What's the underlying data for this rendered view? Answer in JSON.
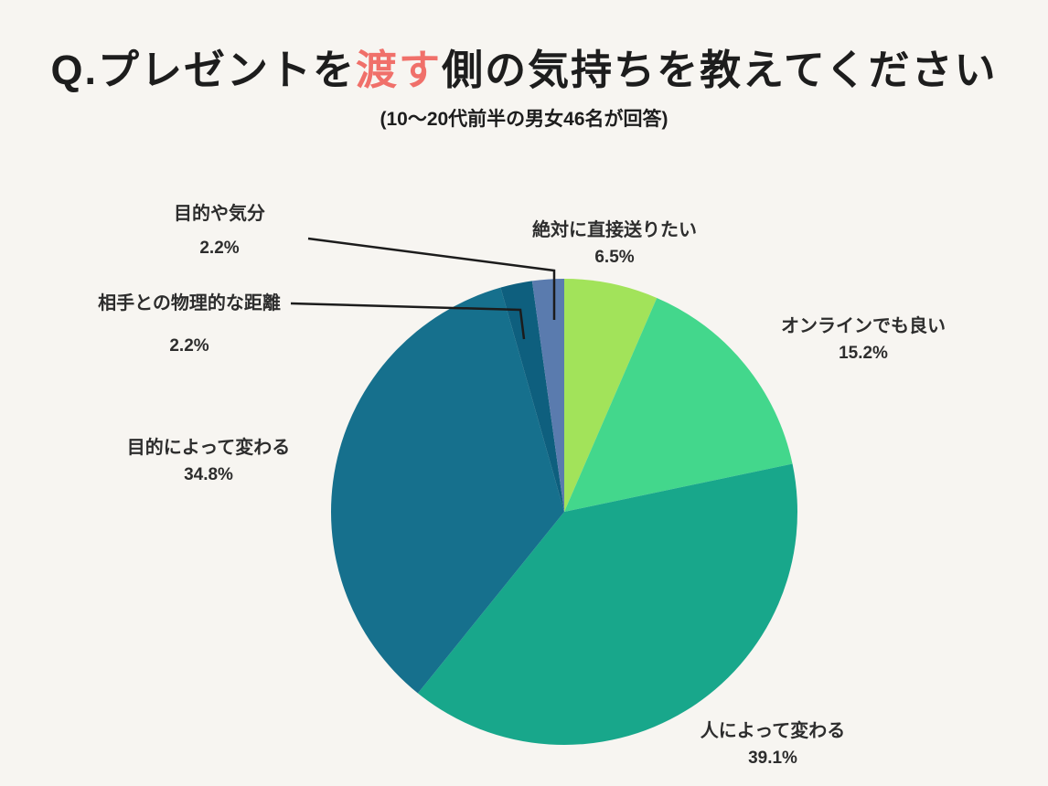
{
  "title": {
    "prefix": "Q.プレゼントを",
    "highlight": "渡す",
    "suffix": "側の気持ちを教えてください"
  },
  "subtitle": "(10〜20代前半の男女46名が回答)",
  "colors": {
    "background": "#F7F5F1",
    "title_text": "#1D1D1D",
    "title_highlight": "#F0706A",
    "label_text": "#2D2D2D",
    "callout_line": "#1C1C1C"
  },
  "chart_data": {
    "type": "pie",
    "title": "Q.プレゼントを渡す側の気持ちを教えてください",
    "subtitle": "(10〜20代前半の男女46名が回答)",
    "unit": "%",
    "start_angle_deg": 0,
    "direction": "clockwise",
    "legend_position": "outside-labels",
    "slices": [
      {
        "label": "絶対に直接送りたい",
        "value": 6.5,
        "pct": "6.5%",
        "color": "#A2E35A"
      },
      {
        "label": "オンラインでも良い",
        "value": 15.2,
        "pct": "15.2%",
        "color": "#43D78C"
      },
      {
        "label": "人によって変わる",
        "value": 39.1,
        "pct": "39.1%",
        "color": "#18A78B"
      },
      {
        "label": "目的によって変わる",
        "value": 34.8,
        "pct": "34.8%",
        "color": "#16708D"
      },
      {
        "label": "相手との物理的な距離",
        "value": 2.2,
        "pct": "2.2%",
        "color": "#0E5F7E"
      },
      {
        "label": "目的や気分",
        "value": 2.2,
        "pct": "2.2%",
        "color": "#5A7BAE"
      }
    ]
  }
}
